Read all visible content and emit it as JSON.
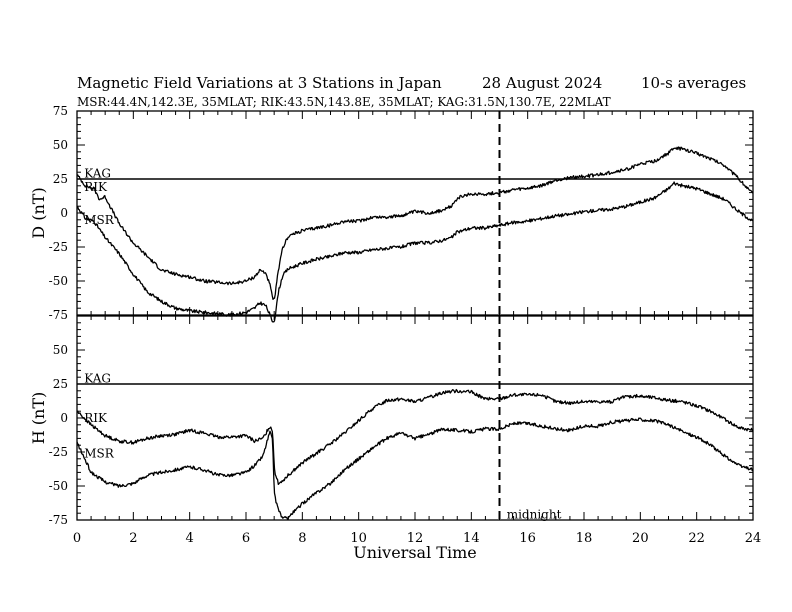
{
  "header": {
    "title": "Magnetic Field Variations at 3 Stations in Japan",
    "date": "28  August  2024",
    "averaging": "10-s averages",
    "subtitle": "MSR:44.4N,142.3E, 35MLAT;  RIK:43.5N,143.8E, 35MLAT;  KAG:31.5N,130.7E, 22MLAT"
  },
  "chart_data": [
    {
      "type": "line",
      "ylabel": "D (nT)",
      "ylim": [
        -75,
        75
      ],
      "yticks": [
        "75",
        "50",
        "25",
        "0",
        "-25",
        "-50",
        "-75"
      ],
      "xlim": [
        0,
        24
      ],
      "series": [
        {
          "name": "KAG",
          "x": [
            0,
            24
          ],
          "values": [
            25,
            25
          ]
        },
        {
          "name": "RIK",
          "x": [
            0,
            0.3,
            0.6,
            0.8,
            1,
            1.5,
            2,
            2.5,
            3,
            3.5,
            4,
            4.5,
            5,
            5.5,
            6,
            6.3,
            6.5,
            6.7,
            6.85,
            6.95,
            7,
            7.05,
            7.15,
            7.3,
            7.5,
            8,
            8.5,
            9,
            9.5,
            10,
            10.5,
            11,
            11.5,
            12,
            12.5,
            13,
            13.3,
            13.5,
            14,
            14.5,
            15,
            15.5,
            16,
            16.5,
            17,
            17.5,
            18,
            18.5,
            19,
            19.5,
            20,
            20.5,
            21,
            21.2,
            21.5,
            22,
            22.5,
            23,
            23.5,
            24
          ],
          "values": [
            28,
            20,
            18,
            10,
            12,
            -8,
            -22,
            -32,
            -42,
            -45,
            -47,
            -50,
            -51,
            -52,
            -50,
            -47,
            -42,
            -44,
            -53,
            -63,
            -64,
            -58,
            -42,
            -26,
            -17,
            -13,
            -11,
            -9,
            -6,
            -6,
            -3,
            -3,
            -2,
            1,
            0,
            2,
            5,
            11,
            14,
            14,
            15,
            17,
            18,
            20,
            24,
            26,
            27,
            28,
            30,
            32,
            36,
            38,
            44,
            48,
            47,
            44,
            40,
            35,
            25,
            14
          ]
        },
        {
          "name": "MSR",
          "x": [
            0,
            0.3,
            0.6,
            0.8,
            1,
            1.5,
            2,
            2.5,
            3,
            3.5,
            4,
            4.5,
            5,
            5.5,
            6,
            6.3,
            6.5,
            6.7,
            6.85,
            6.95,
            7,
            7.05,
            7.15,
            7.3,
            7.5,
            8,
            8.5,
            9,
            9.5,
            10,
            10.5,
            11,
            11.5,
            12,
            12.5,
            13,
            13.3,
            13.5,
            14,
            14.5,
            15,
            15.5,
            16,
            16.5,
            17,
            17.5,
            18,
            18.5,
            19,
            19.5,
            20,
            20.5,
            21,
            21.2,
            21.5,
            22,
            22.5,
            23,
            23.5,
            24
          ],
          "values": [
            5,
            -4,
            -6,
            -12,
            -18,
            -30,
            -45,
            -58,
            -65,
            -70,
            -72,
            -73,
            -74,
            -75,
            -73,
            -70,
            -66,
            -68,
            -75,
            -80,
            -80,
            -74,
            -58,
            -46,
            -41,
            -37,
            -34,
            -32,
            -29,
            -29,
            -27,
            -26,
            -25,
            -22,
            -22,
            -20,
            -18,
            -14,
            -11,
            -11,
            -9,
            -7,
            -6,
            -4,
            -2,
            -1,
            1,
            2,
            3,
            5,
            8,
            11,
            18,
            22,
            20,
            18,
            14,
            10,
            1,
            -6
          ]
        }
      ],
      "annotations": [
        {
          "text": "KAG",
          "x": 0.15,
          "y": 29
        },
        {
          "text": "RIK",
          "x": 0.15,
          "y": 19
        },
        {
          "text": "MSR",
          "x": 0.15,
          "y": -5
        }
      ]
    },
    {
      "type": "line",
      "ylabel": "H (nT)",
      "xlabel": "Universal Time",
      "ylim": [
        -75,
        75
      ],
      "yticks": [
        "75",
        "50",
        "25",
        "0",
        "-25",
        "-50",
        "-75"
      ],
      "xlim": [
        0,
        24
      ],
      "xticks": [
        "0",
        "2",
        "4",
        "6",
        "8",
        "10",
        "12",
        "14",
        "16",
        "18",
        "20",
        "22",
        "24"
      ],
      "series": [
        {
          "name": "KAG",
          "x": [
            0,
            24
          ],
          "values": [
            25,
            25
          ]
        },
        {
          "name": "RIK",
          "x": [
            0,
            0.5,
            1,
            1.5,
            2,
            2.5,
            3,
            3.5,
            4,
            4.5,
            5,
            5.5,
            6,
            6.3,
            6.6,
            6.85,
            6.95,
            7,
            7.05,
            7.15,
            7.3,
            7.5,
            8,
            8.5,
            9,
            9.5,
            10,
            10.5,
            11,
            11.5,
            12,
            12.5,
            13,
            13.5,
            14,
            14.5,
            15,
            15.5,
            16,
            16.5,
            17,
            17.5,
            18,
            18.5,
            19,
            19.5,
            20,
            20.5,
            21,
            21.5,
            22,
            22.5,
            23,
            23.5,
            24
          ],
          "values": [
            5,
            -5,
            -13,
            -17,
            -18,
            -15,
            -13,
            -12,
            -9,
            -11,
            -14,
            -14,
            -13,
            -17,
            -15,
            -6,
            -10,
            -35,
            -42,
            -48,
            -46,
            -42,
            -33,
            -26,
            -19,
            -11,
            -2,
            7,
            13,
            14,
            12,
            15,
            19,
            20,
            19,
            14,
            14,
            17,
            17,
            17,
            12,
            11,
            12,
            12,
            12,
            16,
            16,
            15,
            13,
            12,
            9,
            5,
            -1,
            -7,
            -9
          ]
        },
        {
          "name": "MSR",
          "x": [
            0,
            0.5,
            1,
            1.5,
            2,
            2.5,
            3,
            3.5,
            4,
            4.5,
            5,
            5.5,
            6,
            6.3,
            6.6,
            6.85,
            6.95,
            7,
            7.05,
            7.15,
            7.3,
            7.5,
            8,
            8.5,
            9,
            9.5,
            10,
            10.5,
            11,
            11.5,
            12,
            12.5,
            13,
            13.5,
            14,
            14.5,
            15,
            15.5,
            16,
            16.5,
            17,
            17.5,
            18,
            18.5,
            19,
            19.5,
            20,
            20.5,
            21,
            21.5,
            22,
            22.5,
            23,
            23.5,
            24
          ],
          "values": [
            -18,
            -40,
            -47,
            -50,
            -48,
            -42,
            -40,
            -38,
            -36,
            -38,
            -42,
            -42,
            -40,
            -35,
            -28,
            -10,
            -17,
            -55,
            -60,
            -67,
            -74,
            -73,
            -63,
            -55,
            -48,
            -38,
            -30,
            -22,
            -15,
            -11,
            -15,
            -12,
            -8,
            -9,
            -10,
            -8,
            -8,
            -4,
            -4,
            -6,
            -8,
            -9,
            -6,
            -6,
            -3,
            -2,
            -1,
            -2,
            -5,
            -10,
            -14,
            -20,
            -28,
            -35,
            -38
          ]
        }
      ],
      "annotations": [
        {
          "text": "KAG",
          "x": 0.15,
          "y": 29
        },
        {
          "text": "RIK",
          "x": 0.15,
          "y": 0
        },
        {
          "text": "MSR",
          "x": 0.15,
          "y": -26
        },
        {
          "text": "midnight",
          "x": 15.15,
          "y": -71
        }
      ]
    }
  ],
  "marker": {
    "label": "midnight",
    "x": 15
  }
}
